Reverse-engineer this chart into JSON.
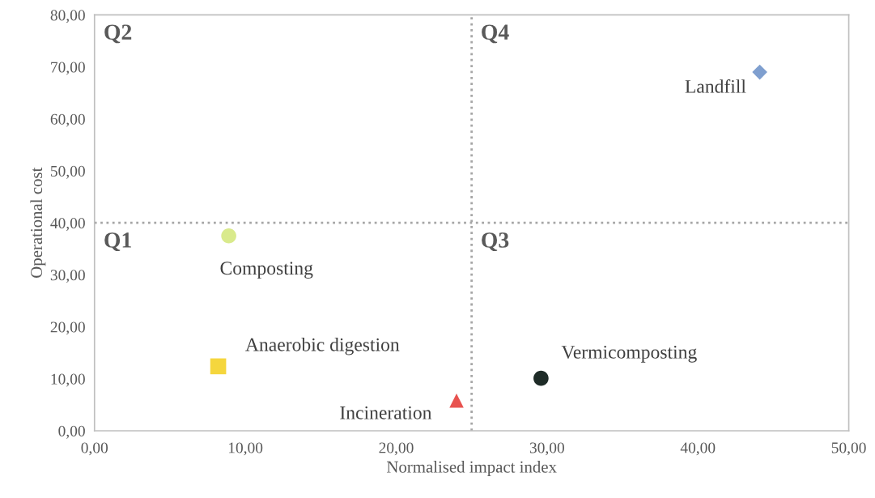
{
  "chart_data": {
    "type": "scatter",
    "xlabel": "Normalised impact index",
    "ylabel": "Operational cost",
    "xlim": [
      0,
      50
    ],
    "ylim": [
      0,
      80
    ],
    "xticks": [
      {
        "value": 0,
        "label": "0,00"
      },
      {
        "value": 10,
        "label": "10,00"
      },
      {
        "value": 20,
        "label": "20,00"
      },
      {
        "value": 30,
        "label": "30,00"
      },
      {
        "value": 40,
        "label": "40,00"
      },
      {
        "value": 50,
        "label": "50,00"
      }
    ],
    "yticks": [
      {
        "value": 0,
        "label": "0,00"
      },
      {
        "value": 10,
        "label": "10,00"
      },
      {
        "value": 20,
        "label": "20,00"
      },
      {
        "value": 30,
        "label": "30,00"
      },
      {
        "value": 40,
        "label": "40,00"
      },
      {
        "value": 50,
        "label": "50,00"
      },
      {
        "value": 60,
        "label": "60,00"
      },
      {
        "value": 70,
        "label": "70,00"
      },
      {
        "value": 80,
        "label": "80,00"
      }
    ],
    "series": [
      {
        "name": "Composting",
        "color": "#d9ea8c",
        "marker": "circle",
        "x": [
          8.9
        ],
        "values": [
          37.5
        ]
      },
      {
        "name": "Anaerobic digestion",
        "color": "#f5d63d",
        "marker": "square",
        "x": [
          8.2
        ],
        "values": [
          12.4
        ]
      },
      {
        "name": "Incineration",
        "color": "#e8524f",
        "marker": "triangle",
        "x": [
          24.0
        ],
        "values": [
          5.8
        ]
      },
      {
        "name": "Vermicomposting",
        "color": "#1e2b27",
        "marker": "circle",
        "x": [
          29.6
        ],
        "values": [
          10.1
        ]
      },
      {
        "name": "Landfill",
        "color": "#7f9fcf",
        "marker": "diamond",
        "x": [
          44.1
        ],
        "values": [
          69.0
        ]
      }
    ],
    "ref_lines": [
      {
        "axis": "x",
        "value": 25,
        "color": "#a6a6a6",
        "line_style": "dotted"
      },
      {
        "axis": "y",
        "value": 40,
        "color": "#a6a6a6",
        "line_style": "dotted"
      }
    ],
    "annotations": [
      "Q1",
      "Q2",
      "Q3",
      "Q4"
    ],
    "grid": false
  }
}
